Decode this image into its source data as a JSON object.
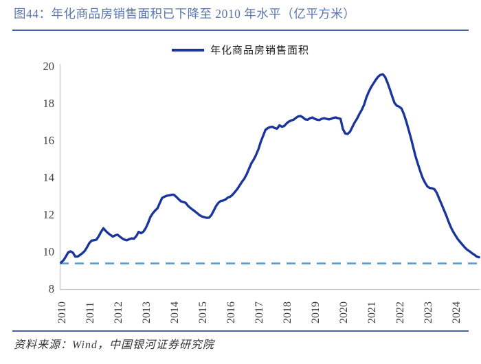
{
  "header": {
    "title": "图44：年化商品房销售面积已下降至 2010 年水平（亿平方米）"
  },
  "legend": {
    "label": "年化商品房销售面积"
  },
  "footer": {
    "source": "资料来源：Wind，中国银河证券研究院"
  },
  "colors": {
    "series_line": "#1a359b",
    "baseline_dashed": "#5b9bd5",
    "rule": "#4263a8",
    "title_text": "#5b76ae",
    "axis": "#c9c9c9",
    "tick_text": "#3f3f3f"
  },
  "chart_data": {
    "type": "line",
    "title": "年化商品房销售面积已下降至 2010 年水平（亿平方米）",
    "unit": "亿平方米",
    "legend_entries": [
      "年化商品房销售面积"
    ],
    "legend_position": "top-center",
    "grid": false,
    "x_axis": {
      "ticks": [
        2010,
        2011,
        2012,
        2013,
        2014,
        2015,
        2016,
        2017,
        2018,
        2019,
        2020,
        2021,
        2022,
        2023,
        2024
      ],
      "min": 2010,
      "max": 2024.9,
      "tick_rotation": -90
    },
    "y_axis": {
      "ticks": [
        20,
        18,
        16,
        14,
        12,
        10,
        8
      ],
      "min": 8,
      "max": 20
    },
    "baseline": {
      "value": 9.35,
      "style": "dashed",
      "note": "2010 level reference line"
    },
    "series": [
      {
        "name": "年化商品房销售面积",
        "frequency": "monthly",
        "start_year": 2010,
        "values": [
          9.4,
          9.52,
          9.72,
          9.95,
          10.0,
          9.93,
          9.72,
          9.72,
          9.8,
          9.9,
          10.02,
          10.22,
          10.45,
          10.58,
          10.6,
          10.63,
          10.82,
          11.05,
          11.25,
          11.1,
          10.98,
          10.88,
          10.8,
          10.86,
          10.9,
          10.8,
          10.7,
          10.63,
          10.6,
          10.66,
          10.7,
          10.68,
          10.82,
          11.05,
          10.98,
          11.06,
          11.25,
          11.52,
          11.85,
          12.05,
          12.2,
          12.32,
          12.6,
          12.88,
          12.95,
          13.0,
          13.02,
          13.05,
          13.05,
          12.95,
          12.82,
          12.7,
          12.66,
          12.62,
          12.46,
          12.35,
          12.25,
          12.15,
          12.05,
          11.95,
          11.88,
          11.84,
          11.81,
          11.82,
          11.96,
          12.2,
          12.45,
          12.62,
          12.72,
          12.74,
          12.8,
          12.9,
          12.95,
          13.05,
          13.2,
          13.36,
          13.55,
          13.75,
          13.92,
          14.15,
          14.45,
          14.75,
          14.95,
          15.2,
          15.5,
          15.9,
          16.22,
          16.55,
          16.65,
          16.7,
          16.72,
          16.65,
          16.62,
          16.8,
          16.72,
          16.76,
          16.9,
          17.0,
          17.06,
          17.1,
          17.2,
          17.28,
          17.3,
          17.22,
          17.12,
          17.1,
          17.18,
          17.22,
          17.15,
          17.1,
          17.08,
          17.15,
          17.18,
          17.15,
          17.12,
          17.15,
          17.2,
          17.22,
          17.18,
          17.15,
          16.6,
          16.36,
          16.33,
          16.45,
          16.7,
          16.95,
          17.15,
          17.4,
          17.62,
          17.9,
          18.3,
          18.6,
          18.85,
          19.05,
          19.25,
          19.42,
          19.52,
          19.55,
          19.4,
          19.1,
          18.75,
          18.35,
          18.0,
          17.85,
          17.8,
          17.7,
          17.4,
          17.0,
          16.55,
          16.1,
          15.6,
          15.1,
          14.7,
          14.3,
          13.95,
          13.7,
          13.5,
          13.42,
          13.4,
          13.35,
          13.15,
          12.85,
          12.55,
          12.25,
          11.95,
          11.6,
          11.3,
          11.05,
          10.85,
          10.65,
          10.5,
          10.35,
          10.2,
          10.08,
          10.0,
          9.9,
          9.82,
          9.72,
          9.68
        ]
      }
    ]
  }
}
